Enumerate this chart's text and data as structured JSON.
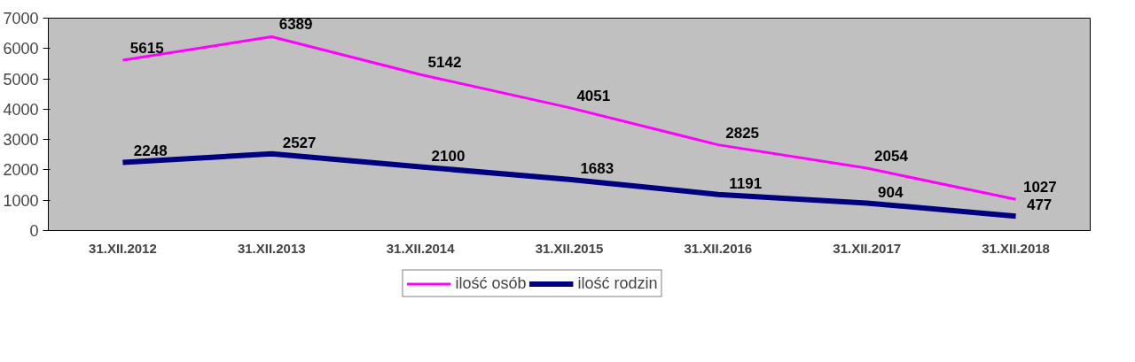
{
  "chart_data": {
    "type": "line",
    "categories": [
      "31.XII.2012",
      "31.XII.2013",
      "31.XII.2014",
      "31.XII.2015",
      "31.XII.2016",
      "31.XII.2017",
      "31.XII.2018"
    ],
    "series": [
      {
        "name": "ilość osób",
        "color": "#ff00ff",
        "values": [
          5615,
          6389,
          5142,
          4051,
          2825,
          2054,
          1027
        ]
      },
      {
        "name": "ilość rodzin",
        "color": "#000080",
        "values": [
          2248,
          2527,
          2100,
          1683,
          1191,
          904,
          477
        ]
      }
    ],
    "ylim": [
      0,
      7000
    ],
    "yticks": [
      0,
      1000,
      2000,
      3000,
      4000,
      5000,
      6000,
      7000
    ],
    "grid": false,
    "legend": "bottom",
    "data_labels": true,
    "marker": "none",
    "line_style": "solid"
  }
}
